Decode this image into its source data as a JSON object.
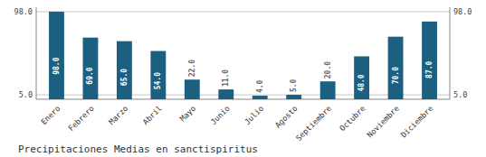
{
  "chart_data": {
    "type": "bar",
    "title": "Precipitaciones Medias en sanctispiritus",
    "categories": [
      "Enero",
      "Febrero",
      "Marzo",
      "Abril",
      "Mayo",
      "Junio",
      "Julio",
      "Agosto",
      "Septiembre",
      "Octubre",
      "Noviembre",
      "Diciembre"
    ],
    "values": [
      98.0,
      69.0,
      65.0,
      54.0,
      22.0,
      11.0,
      4.0,
      5.0,
      20.0,
      48.0,
      70.0,
      87.0
    ],
    "value_labels": [
      "98.0",
      "69.0",
      "65.0",
      "54.0",
      "22.0",
      "11.0",
      "4.0",
      "5.0",
      "20.0",
      "48.0",
      "70.0",
      "87.0"
    ],
    "data_labels": true,
    "color": "#1b6080",
    "ylim": [
      0,
      103
    ],
    "yticks": [
      {
        "value": 5.0,
        "label": "5.0"
      },
      {
        "value": 98.0,
        "label": "98.0"
      }
    ],
    "y2lim": [
      0,
      103
    ],
    "y2ticks": [
      {
        "value": 5.0,
        "label": "5.0"
      },
      {
        "value": 98.0,
        "label": "98.0"
      }
    ],
    "grid": true
  }
}
